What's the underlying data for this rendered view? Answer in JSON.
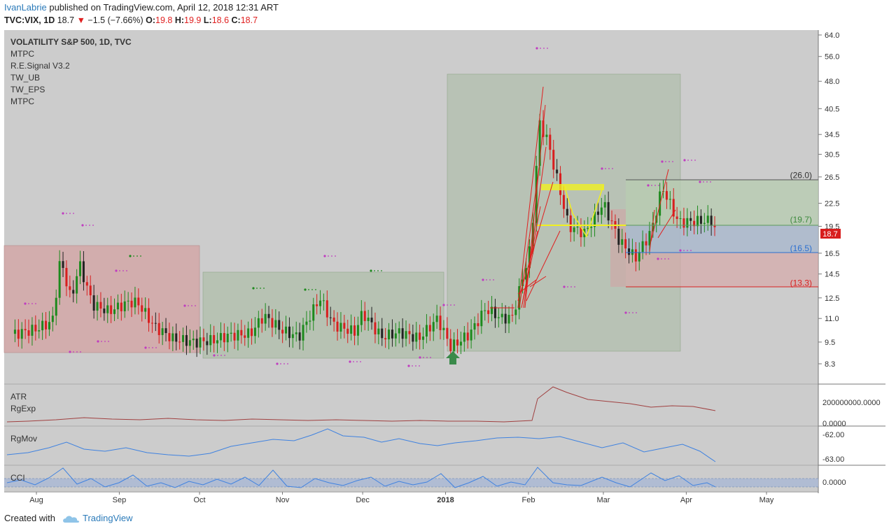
{
  "header": {
    "author": "IvanLabrie",
    "published": "published on TradingView.com, April 12, 2018 12:31 ART",
    "symbol": "TVC:VIX, 1D",
    "last": "18.7",
    "change_arrow": "▼",
    "change": "−1.5 (−7.66%)",
    "o_label": "O:",
    "o_val": "19.8",
    "h_label": "H:",
    "h_val": "19.9",
    "l_label": "L:",
    "l_val": "18.6",
    "c_label": "C:",
    "c_val": "18.7"
  },
  "legend": {
    "title": "VOLATILITY S&P 500, 1D, TVC",
    "items": [
      "MTPC",
      "R.E.Signal V3.2",
      "TW_UB",
      "TW_EPS",
      "MTPC"
    ]
  },
  "panes": {
    "atr": {
      "labels": [
        "ATR",
        "RgExp"
      ],
      "ticks": [
        "200000000.0000",
        "0.0000"
      ]
    },
    "rgmov": {
      "label": "RgMov",
      "ticks": [
        "-62.00",
        "-63.00"
      ]
    },
    "cci": {
      "label": "CCI",
      "ticks": [
        "0.0000"
      ]
    }
  },
  "footer": {
    "created_with": "Created with",
    "brand": "TradingView"
  },
  "colors": {
    "up": "#1d8a1d",
    "down": "#d81e1e",
    "bg": "#cccccc",
    "accent": "#2a7ab9"
  },
  "chart_data": {
    "type": "candlestick",
    "symbol": "TVC:VIX",
    "timeframe": "1D",
    "scale": "log",
    "y_ticks": [
      "64.0",
      "56.0",
      "48.0",
      "40.5",
      "34.5",
      "30.5",
      "26.5",
      "22.5",
      "19.5",
      "16.5",
      "14.5",
      "12.5",
      "11.0",
      "9.5",
      "8.3"
    ],
    "x_ticks": [
      "Aug",
      "Sep",
      "Oct",
      "Nov",
      "Dec",
      "2018",
      "Feb",
      "Mar",
      "Apr",
      "May"
    ],
    "ylim": [
      7.3,
      64
    ],
    "last_price_label": "18.7",
    "levels": [
      {
        "label": "(26.0)",
        "value": 26.0,
        "color": "#333333"
      },
      {
        "label": "(19.7)",
        "value": 19.7,
        "color": "#3d8a3d"
      },
      {
        "label": "(16.5)",
        "value": 16.5,
        "color": "#2a6fd0"
      },
      {
        "label": "(13.3)",
        "value": 13.3,
        "color": "#d82020"
      }
    ],
    "close_path": [
      {
        "date": "2017-07-24",
        "close": 10.0
      },
      {
        "date": "2017-08-01",
        "close": 10.3
      },
      {
        "date": "2017-08-07",
        "close": 10.8
      },
      {
        "date": "2017-08-10",
        "close": 16.0
      },
      {
        "date": "2017-08-14",
        "close": 12.3
      },
      {
        "date": "2017-08-17",
        "close": 15.5
      },
      {
        "date": "2017-08-22",
        "close": 12.0
      },
      {
        "date": "2017-08-28",
        "close": 11.5
      },
      {
        "date": "2017-09-05",
        "close": 12.2
      },
      {
        "date": "2017-09-08",
        "close": 12.1
      },
      {
        "date": "2017-09-14",
        "close": 10.5
      },
      {
        "date": "2017-09-21",
        "close": 9.7
      },
      {
        "date": "2017-09-29",
        "close": 9.5
      },
      {
        "date": "2017-10-06",
        "close": 9.6
      },
      {
        "date": "2017-10-12",
        "close": 9.9
      },
      {
        "date": "2017-10-20",
        "close": 10.0
      },
      {
        "date": "2017-10-25",
        "close": 11.2
      },
      {
        "date": "2017-11-01",
        "close": 10.2
      },
      {
        "date": "2017-11-07",
        "close": 9.8
      },
      {
        "date": "2017-11-15",
        "close": 12.5
      },
      {
        "date": "2017-11-20",
        "close": 10.6
      },
      {
        "date": "2017-11-28",
        "close": 10.1
      },
      {
        "date": "2017-12-01",
        "close": 11.4
      },
      {
        "date": "2017-12-08",
        "close": 9.8
      },
      {
        "date": "2017-12-15",
        "close": 10.1
      },
      {
        "date": "2017-12-22",
        "close": 9.7
      },
      {
        "date": "2017-12-29",
        "close": 11.0
      },
      {
        "date": "2018-01-03",
        "close": 9.2
      },
      {
        "date": "2018-01-10",
        "close": 10.0
      },
      {
        "date": "2018-01-16",
        "close": 11.7
      },
      {
        "date": "2018-01-22",
        "close": 11.0
      },
      {
        "date": "2018-01-26",
        "close": 11.1
      },
      {
        "date": "2018-02-02",
        "close": 17.3
      },
      {
        "date": "2018-02-05",
        "close": 37.0
      },
      {
        "date": "2018-02-08",
        "close": 33.5
      },
      {
        "date": "2018-02-12",
        "close": 25.6
      },
      {
        "date": "2018-02-16",
        "close": 19.5
      },
      {
        "date": "2018-02-22",
        "close": 18.7
      },
      {
        "date": "2018-03-01",
        "close": 22.5
      },
      {
        "date": "2018-03-07",
        "close": 17.8
      },
      {
        "date": "2018-03-13",
        "close": 16.0
      },
      {
        "date": "2018-03-19",
        "close": 19.0
      },
      {
        "date": "2018-03-23",
        "close": 24.9
      },
      {
        "date": "2018-03-29",
        "close": 20.0
      },
      {
        "date": "2018-04-04",
        "close": 20.1
      },
      {
        "date": "2018-04-11",
        "close": 20.2
      },
      {
        "date": "2018-04-12",
        "close": 18.7
      }
    ]
  }
}
